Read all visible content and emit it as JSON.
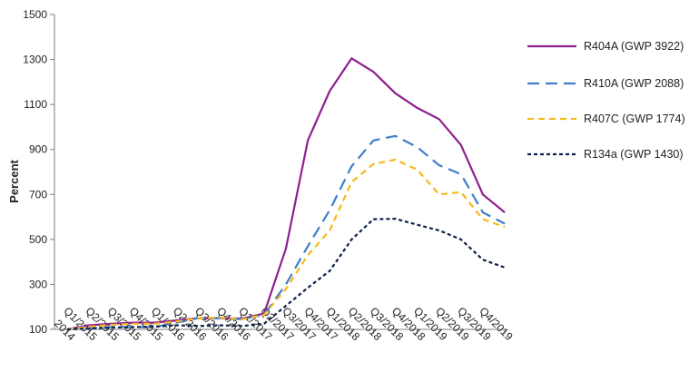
{
  "chart_data": {
    "type": "line",
    "ylabel": "Percent",
    "xlabel": "",
    "ylim": [
      100,
      1500
    ],
    "yticks": [
      "100",
      "300",
      "500",
      "700",
      "900",
      "1100",
      "1300",
      "1500"
    ],
    "grid": false,
    "legend_position": "right",
    "categories": [
      "2014",
      "Q1/2015",
      "Q2/2015",
      "Q3/2015",
      "Q4/2015",
      "Q1/2016",
      "Q2/2016",
      "Q3/2016",
      "Q4/2016",
      "Q1/2017",
      "Q2/2017",
      "Q3/2017",
      "Q4/2017",
      "Q1/2018",
      "Q2/2018",
      "Q3/2018",
      "Q4/2018",
      "Q1/2019",
      "Q2/2019",
      "Q3/2019",
      "Q4/2019"
    ],
    "series": [
      {
        "name": "R404A (GWP 3922)",
        "color": "#8e1f8f",
        "dash": "solid",
        "values": [
          100,
          118,
          125,
          130,
          130,
          140,
          150,
          150,
          148,
          170,
          460,
          940,
          1160,
          1305,
          1245,
          1150,
          1085,
          1035,
          920,
          700,
          620
        ]
      },
      {
        "name": "R410A (GWP 2088)",
        "color": "#3f7fc6",
        "dash": "long-dash",
        "values": [
          100,
          105,
          110,
          110,
          110,
          130,
          150,
          150,
          145,
          165,
          300,
          470,
          630,
          825,
          940,
          960,
          910,
          830,
          790,
          620,
          570
        ]
      },
      {
        "name": "R407C (GWP 1774)",
        "color": "#f6b81a",
        "dash": "short-dash",
        "values": [
          100,
          112,
          120,
          125,
          125,
          135,
          150,
          152,
          145,
          165,
          280,
          430,
          540,
          755,
          835,
          855,
          810,
          700,
          710,
          590,
          555
        ]
      },
      {
        "name": "R134a (GWP 1430)",
        "color": "#10224a",
        "dash": "dot",
        "values": [
          100,
          104,
          108,
          110,
          112,
          118,
          115,
          118,
          115,
          125,
          205,
          285,
          360,
          500,
          590,
          592,
          565,
          540,
          500,
          410,
          375
        ]
      }
    ]
  }
}
